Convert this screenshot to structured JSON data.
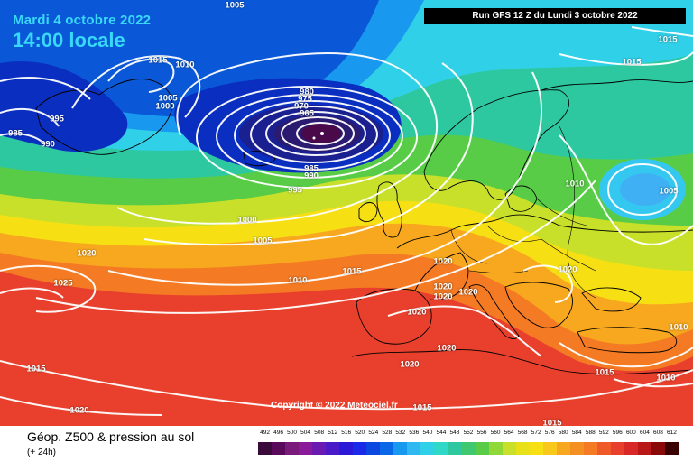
{
  "header": {
    "date": "Mardi 4 octobre 2022",
    "time": "14:00 locale",
    "run": "Run GFS 12 Z du Lundi 3 octobre 2022"
  },
  "footer": {
    "copyright": "Copyright © 2022 Meteociel.fr",
    "field_title": "Géop. Z500 & pression au sol",
    "lead_time": "(+ 24h)"
  },
  "isobar_labels": [
    "1005",
    "1015",
    "1010",
    "1005",
    "1000",
    "995",
    "985",
    "990",
    "980",
    "975",
    "970",
    "965",
    "985",
    "990",
    "995",
    "1000",
    "1005",
    "1010",
    "1015",
    "1020",
    "1025",
    "1015",
    "1020",
    "1020",
    "1020",
    "1020",
    "1020",
    "1020",
    "1020",
    "1020",
    "1015",
    "1010",
    "1005",
    "1010",
    "1015",
    "1015",
    "1020",
    "1015",
    "1010",
    "1015"
  ],
  "scale": {
    "ticks": [
      "492",
      "496",
      "500",
      "504",
      "508",
      "512",
      "516",
      "520",
      "524",
      "528",
      "532",
      "536",
      "540",
      "544",
      "548",
      "552",
      "556",
      "560",
      "564",
      "568",
      "572",
      "576",
      "580",
      "584",
      "588",
      "592",
      "596",
      "600",
      "604",
      "608",
      "612"
    ],
    "colors": [
      "#3a0a3a",
      "#5a0a5a",
      "#7a1a7a",
      "#8a1a9a",
      "#6a1ab0",
      "#4a1ac8",
      "#2a1ad8",
      "#1a2ae8",
      "#0a48e0",
      "#0a68e8",
      "#1898ee",
      "#30b8f0",
      "#30d0e8",
      "#30d8c8",
      "#2ec8a0",
      "#40c870",
      "#58cc46",
      "#90d838",
      "#c8e02a",
      "#e8e018",
      "#f6e014",
      "#f8c81a",
      "#f8a81e",
      "#f49022",
      "#f47a24",
      "#f05a28",
      "#e8402c",
      "#d82828",
      "#b81818",
      "#8a0a0a",
      "#3a0000"
    ]
  }
}
